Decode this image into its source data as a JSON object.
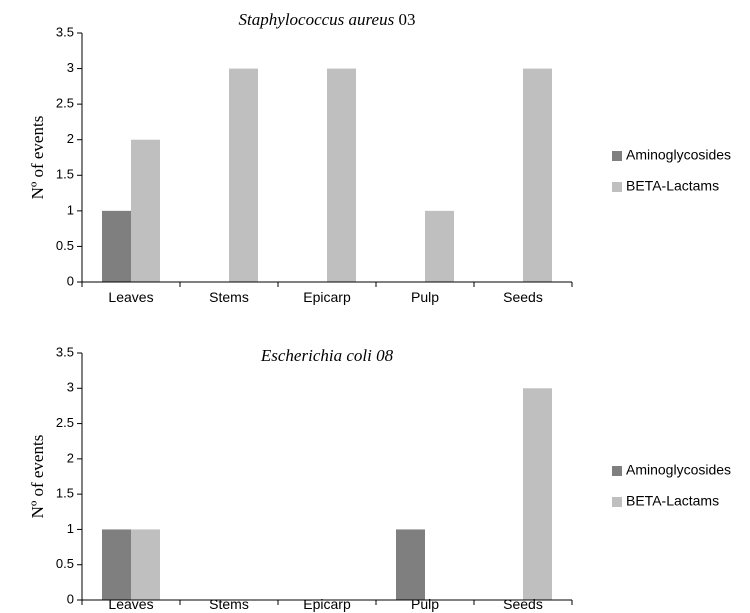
{
  "chart_data": [
    {
      "type": "bar",
      "title": "Staphylococcus aureus",
      "title_suffix": " 03",
      "ylabel": "Nº of events",
      "xlabel": "",
      "ylim": [
        0,
        3.5
      ],
      "yticks": [
        "0",
        "0.5",
        "1",
        "1.5",
        "2",
        "2.5",
        "3",
        "3.5"
      ],
      "categories": [
        "Leaves",
        "Stems",
        "Epicarp",
        "Pulp",
        "Seeds"
      ],
      "grid": false,
      "legend_position": "right",
      "series": [
        {
          "name": "Aminoglycosides",
          "color": "#7f7f7f",
          "values": [
            1,
            0,
            0,
            0,
            0
          ]
        },
        {
          "name": "BETA-Lactams",
          "color": "#bfbfbf",
          "values": [
            2,
            3,
            3,
            1,
            3
          ]
        }
      ]
    },
    {
      "type": "bar",
      "title": "Escherichia coli 08",
      "title_suffix": "",
      "ylabel": "Nº of events",
      "xlabel": "",
      "ylim": [
        0,
        3.5
      ],
      "yticks": [
        "0",
        "0.5",
        "1",
        "1.5",
        "2",
        "2.5",
        "3",
        "3.5"
      ],
      "categories": [
        "Leaves",
        "Stems",
        "Epicarp",
        "Pulp",
        "Seeds"
      ],
      "grid": false,
      "legend_position": "right",
      "series": [
        {
          "name": "Aminoglycosides",
          "color": "#7f7f7f",
          "values": [
            1,
            0,
            0,
            1,
            0
          ]
        },
        {
          "name": "BETA-Lactams",
          "color": "#bfbfbf",
          "values": [
            1,
            0,
            0,
            0,
            3
          ]
        }
      ]
    }
  ]
}
